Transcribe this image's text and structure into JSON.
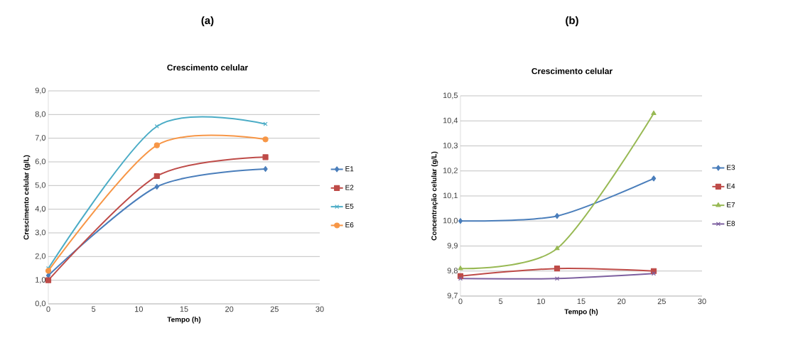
{
  "chart_data": [
    {
      "type": "line",
      "title": "(a)",
      "subtitle": "Crescimento celular",
      "xlabel": "Tempo (h)",
      "ylabel": "Crescimento celular (g/L)",
      "x": [
        0,
        12,
        24
      ],
      "series": [
        {
          "name": "E1",
          "color": "#4a7ebb",
          "marker": "diamond",
          "values": [
            1.2,
            4.95,
            5.7
          ]
        },
        {
          "name": "E2",
          "color": "#be4b48",
          "marker": "square",
          "values": [
            1.0,
            5.4,
            6.2
          ]
        },
        {
          "name": "E5",
          "color": "#4bacc6",
          "marker": "cross",
          "values": [
            1.5,
            7.5,
            7.6
          ]
        },
        {
          "name": "E6",
          "color": "#f79646",
          "marker": "circle",
          "values": [
            1.4,
            6.7,
            6.95
          ]
        }
      ],
      "xlim": [
        0,
        30
      ],
      "xticks": [
        0,
        5,
        10,
        15,
        20,
        25,
        30
      ],
      "ylim": [
        0,
        9
      ],
      "yticks": [
        {
          "value": 0,
          "label": "0,0"
        },
        {
          "value": 1,
          "label": "1,0"
        },
        {
          "value": 2,
          "label": "2,0"
        },
        {
          "value": 3,
          "label": "3,0"
        },
        {
          "value": 4,
          "label": "4,0"
        },
        {
          "value": 5,
          "label": "5,0"
        },
        {
          "value": 6,
          "label": "6,0"
        },
        {
          "value": 7,
          "label": "7,0"
        },
        {
          "value": 8,
          "label": "8,0"
        },
        {
          "value": 9,
          "label": "9,0"
        }
      ],
      "grid": "y",
      "legend": "right"
    },
    {
      "type": "line",
      "title": "(b)",
      "subtitle": "Crescimento celular",
      "xlabel": "Tempo (h)",
      "ylabel": "Concentração celular (g/L)",
      "x": [
        0,
        12,
        24
      ],
      "series": [
        {
          "name": "E3",
          "color": "#4a7ebb",
          "marker": "diamond",
          "values": [
            10.0,
            10.02,
            10.17
          ]
        },
        {
          "name": "E4",
          "color": "#be4b48",
          "marker": "square",
          "values": [
            9.78,
            9.81,
            9.8
          ]
        },
        {
          "name": "E7",
          "color": "#98b954",
          "marker": "triangle",
          "values": [
            9.81,
            9.89,
            10.43
          ]
        },
        {
          "name": "E8",
          "color": "#7d60a0",
          "marker": "cross",
          "values": [
            9.77,
            9.77,
            9.79
          ]
        }
      ],
      "xlim": [
        0,
        30
      ],
      "xticks": [
        0,
        5,
        10,
        15,
        20,
        25,
        30
      ],
      "ylim": [
        9.7,
        10.5
      ],
      "yticks": [
        {
          "value": 9.7,
          "label": "9,7"
        },
        {
          "value": 9.8,
          "label": "9,8"
        },
        {
          "value": 9.9,
          "label": "9,9"
        },
        {
          "value": 10.0,
          "label": "10,0"
        },
        {
          "value": 10.1,
          "label": "10,1"
        },
        {
          "value": 10.2,
          "label": "10,2"
        },
        {
          "value": 10.3,
          "label": "10,3"
        },
        {
          "value": 10.4,
          "label": "10,4"
        },
        {
          "value": 10.5,
          "label": "10,5"
        }
      ],
      "grid": "y",
      "legend": "right"
    }
  ]
}
